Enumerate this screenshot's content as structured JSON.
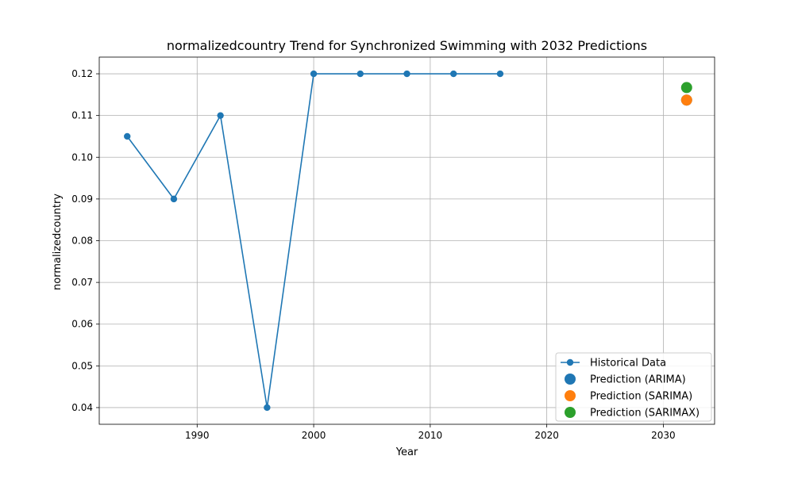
{
  "chart_data": {
    "type": "line",
    "title": "normalizedcountry Trend for Synchronized Swimming with 2032 Predictions",
    "xlabel": "Year",
    "ylabel": "normalizedcountry",
    "xlim": [
      1981.6,
      2034.4
    ],
    "ylim": [
      0.036,
      0.124
    ],
    "x_ticks": [
      1990,
      2000,
      2010,
      2020,
      2030
    ],
    "y_ticks": [
      0.04,
      0.05,
      0.06,
      0.07,
      0.08,
      0.09,
      0.1,
      0.11,
      0.12
    ],
    "x_tick_labels": [
      "1990",
      "2000",
      "2010",
      "2020",
      "2030"
    ],
    "y_tick_labels": [
      "0.04",
      "0.05",
      "0.06",
      "0.07",
      "0.08",
      "0.09",
      "0.10",
      "0.11",
      "0.12"
    ],
    "grid": true,
    "legend_position": "lower-right",
    "series": [
      {
        "name": "Historical Data",
        "kind": "line-marker",
        "color": "#1f77b4",
        "x": [
          1984,
          1988,
          1992,
          1996,
          2000,
          2004,
          2008,
          2012,
          2016
        ],
        "y": [
          0.105,
          0.09,
          0.11,
          0.04,
          0.12,
          0.12,
          0.12,
          0.12,
          0.12
        ]
      },
      {
        "name": "Prediction (ARIMA)",
        "kind": "point",
        "color": "#1f77b4",
        "x": [
          2032
        ],
        "y": [
          0.1137
        ]
      },
      {
        "name": "Prediction (SARIMA)",
        "kind": "point",
        "color": "#ff7f0e",
        "x": [
          2032
        ],
        "y": [
          0.1137
        ]
      },
      {
        "name": "Prediction (SARIMAX)",
        "kind": "point",
        "color": "#2ca02c",
        "x": [
          2032
        ],
        "y": [
          0.1167
        ]
      }
    ]
  }
}
